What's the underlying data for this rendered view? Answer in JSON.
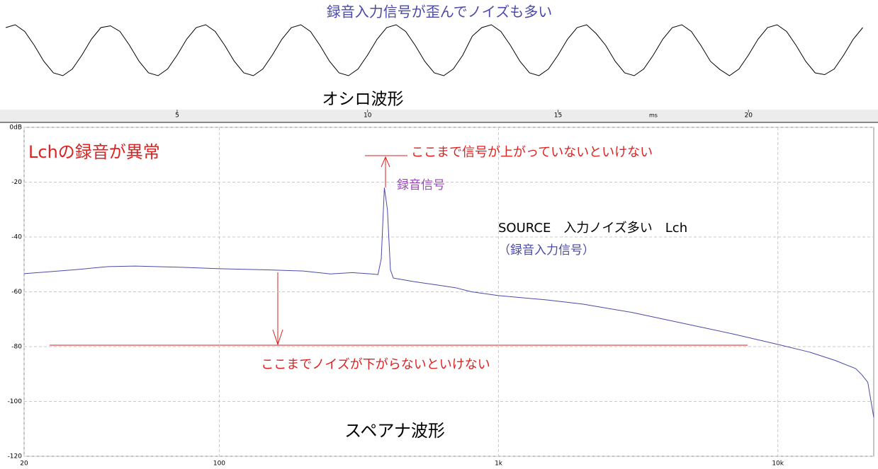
{
  "chart_data": [
    {
      "type": "line",
      "x": [
        0.5,
        0.75,
        1,
        1.25,
        1.5,
        1.75,
        2,
        2.25,
        2.5,
        2.75,
        3,
        3.25,
        3.5,
        3.75,
        4,
        4.25,
        4.5,
        4.75,
        5,
        5.25,
        5.5,
        5.75,
        6,
        6.25,
        6.5,
        6.75,
        7,
        7.25,
        7.5,
        7.75,
        8,
        8.25,
        8.5,
        8.75,
        9,
        9.25,
        9.5,
        9.75,
        10,
        10.25,
        10.5,
        10.75,
        11,
        11.25,
        11.5,
        11.75,
        12,
        12.25,
        12.5,
        12.75,
        13,
        13.25,
        13.5,
        13.75,
        14,
        14.25,
        14.5,
        14.75,
        15,
        15.25,
        15.5,
        15.75,
        16,
        16.25,
        16.5,
        16.75,
        17,
        17.25,
        17.5,
        17.75,
        18,
        18.25,
        18.5,
        18.75,
        19,
        19.25,
        19.5,
        19.75,
        20,
        20.25,
        20.5,
        20.75,
        21,
        21.25,
        21.5,
        21.75,
        22,
        22.25,
        22.5,
        22.75,
        23
      ],
      "values": [
        0.88,
        0.99,
        0.73,
        0.19,
        -0.43,
        -0.88,
        -0.99,
        -0.73,
        -0.19,
        0.43,
        0.88,
        0.95,
        0.73,
        0.19,
        -0.43,
        -0.88,
        -0.99,
        -0.73,
        -0.19,
        0.43,
        0.88,
        0.99,
        0.73,
        0.19,
        -0.43,
        -0.88,
        -0.99,
        -0.73,
        -0.19,
        0.43,
        0.88,
        0.99,
        0.73,
        0.19,
        -0.43,
        -0.88,
        -0.99,
        -0.73,
        -0.19,
        0.43,
        0.88,
        0.99,
        0.73,
        0.19,
        -0.43,
        -0.88,
        -0.99,
        -0.73,
        -0.19,
        0.55,
        0.88,
        0.99,
        0.73,
        0.19,
        -0.43,
        -0.88,
        -0.99,
        -0.73,
        -0.19,
        0.43,
        0.88,
        0.99,
        0.65,
        0.19,
        -0.43,
        -0.88,
        -0.99,
        -0.73,
        -0.19,
        0.43,
        0.88,
        0.99,
        0.73,
        0.19,
        -0.43,
        -0.75,
        -0.99,
        -0.73,
        -0.19,
        0.43,
        0.88,
        0.99,
        0.73,
        0.19,
        -0.43,
        -0.88,
        -0.95,
        -0.73,
        -0.19,
        0.43,
        0.88
      ],
      "color": "#000000",
      "xlim": [
        0.35,
        23.4
      ],
      "xticks": [
        5,
        10,
        15,
        20
      ],
      "xlabel": "ms",
      "annotations": [
        "録音入力信号が歪んでノイズも多い",
        "オシロ波形"
      ]
    },
    {
      "type": "line",
      "log_x": true,
      "grid": true,
      "x": [
        20,
        30,
        40,
        50,
        70,
        100,
        150,
        200,
        250,
        300,
        350,
        370,
        380,
        390,
        400,
        410,
        420,
        450,
        500,
        600,
        700,
        800,
        1000,
        1500,
        2000,
        3000,
        5000,
        7000,
        10000,
        13000,
        16000,
        19000,
        20000,
        21000,
        22050
      ],
      "values": [
        -53.4,
        -52,
        -50.8,
        -50.6,
        -51,
        -51.6,
        -52,
        -52.4,
        -53.5,
        -53,
        -53.5,
        -53.7,
        -48,
        -22,
        -30,
        -52,
        -55,
        -55.5,
        -56.3,
        -57.5,
        -58.5,
        -60,
        -61.4,
        -63,
        -64.5,
        -67.5,
        -72.3,
        -75.5,
        -79.2,
        -82,
        -85,
        -88,
        -90.3,
        -93,
        -105.8
      ],
      "color": "#4a4aa8",
      "xlim": [
        20,
        22050
      ],
      "xticks": [
        20,
        100,
        {
          "value": 1000,
          "label": "1k"
        },
        {
          "value": 10000,
          "label": "10k"
        }
      ],
      "ylim": [
        -120,
        0
      ],
      "yticks": [
        {
          "value": 0,
          "label": "0dB"
        },
        -20,
        -40,
        -60,
        -80,
        -100,
        -120
      ],
      "annotations": [
        "Lchの録音が異常",
        "ここまで信号が上がっていないといけない",
        "録音信号",
        "SOURCE　入力ノイズ多い　Lch",
        "（録音入力信号）",
        "ここまでノイズが下がらないといけない",
        "スペアナ波形"
      ]
    }
  ]
}
